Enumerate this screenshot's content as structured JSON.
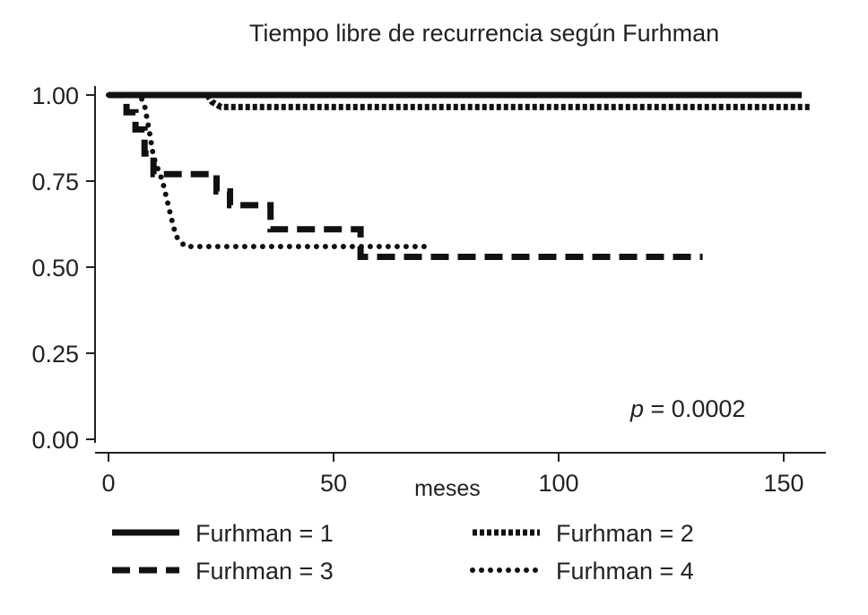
{
  "chart_data": {
    "type": "line",
    "subtype": "kaplan-meier-step",
    "title": "Tiempo libre de recurrencia según Furhman",
    "xlabel": "meses",
    "ylabel": "",
    "xlim": [
      0,
      160
    ],
    "ylim": [
      0,
      1
    ],
    "x_ticks": [
      0,
      50,
      100,
      150
    ],
    "x_tick_labels": [
      "0",
      "50",
      "100",
      "150"
    ],
    "y_ticks": [
      0,
      0.25,
      0.5,
      0.75,
      1
    ],
    "y_tick_labels": [
      "0.00",
      "0.25",
      "0.50",
      "0.75",
      "1.00"
    ],
    "grid": false,
    "legend_position": "bottom",
    "annotation": {
      "italic": "p",
      "rest": " = 0.0002"
    },
    "series": [
      {
        "name": "Furhman = 1",
        "style": "solid",
        "points": [
          [
            0,
            1.0
          ],
          [
            154,
            1.0
          ]
        ]
      },
      {
        "name": "Furhman = 2",
        "style": "densely-dashed",
        "points": [
          [
            22,
            1.0
          ],
          [
            23,
            0.98
          ],
          [
            25,
            0.965
          ],
          [
            156,
            0.965
          ]
        ]
      },
      {
        "name": "Furhman = 3",
        "style": "dashed",
        "points": [
          [
            0,
            1.0
          ],
          [
            4,
            1.0
          ],
          [
            4,
            0.95
          ],
          [
            6,
            0.95
          ],
          [
            6,
            0.9
          ],
          [
            8,
            0.9
          ],
          [
            8,
            0.83
          ],
          [
            10,
            0.83
          ],
          [
            10,
            0.77
          ],
          [
            24,
            0.77
          ],
          [
            24,
            0.72
          ],
          [
            27,
            0.72
          ],
          [
            27,
            0.68
          ],
          [
            36,
            0.68
          ],
          [
            36,
            0.61
          ],
          [
            56,
            0.61
          ],
          [
            56,
            0.53
          ],
          [
            132,
            0.53
          ]
        ]
      },
      {
        "name": "Furhman = 4",
        "style": "dotted",
        "points": [
          [
            0,
            1.0
          ],
          [
            7,
            1.0
          ],
          [
            8,
            0.97
          ],
          [
            9,
            0.9
          ],
          [
            10,
            0.82
          ],
          [
            12,
            0.75
          ],
          [
            14,
            0.64
          ],
          [
            15,
            0.59
          ],
          [
            17,
            0.56
          ],
          [
            72,
            0.56
          ]
        ]
      }
    ]
  }
}
